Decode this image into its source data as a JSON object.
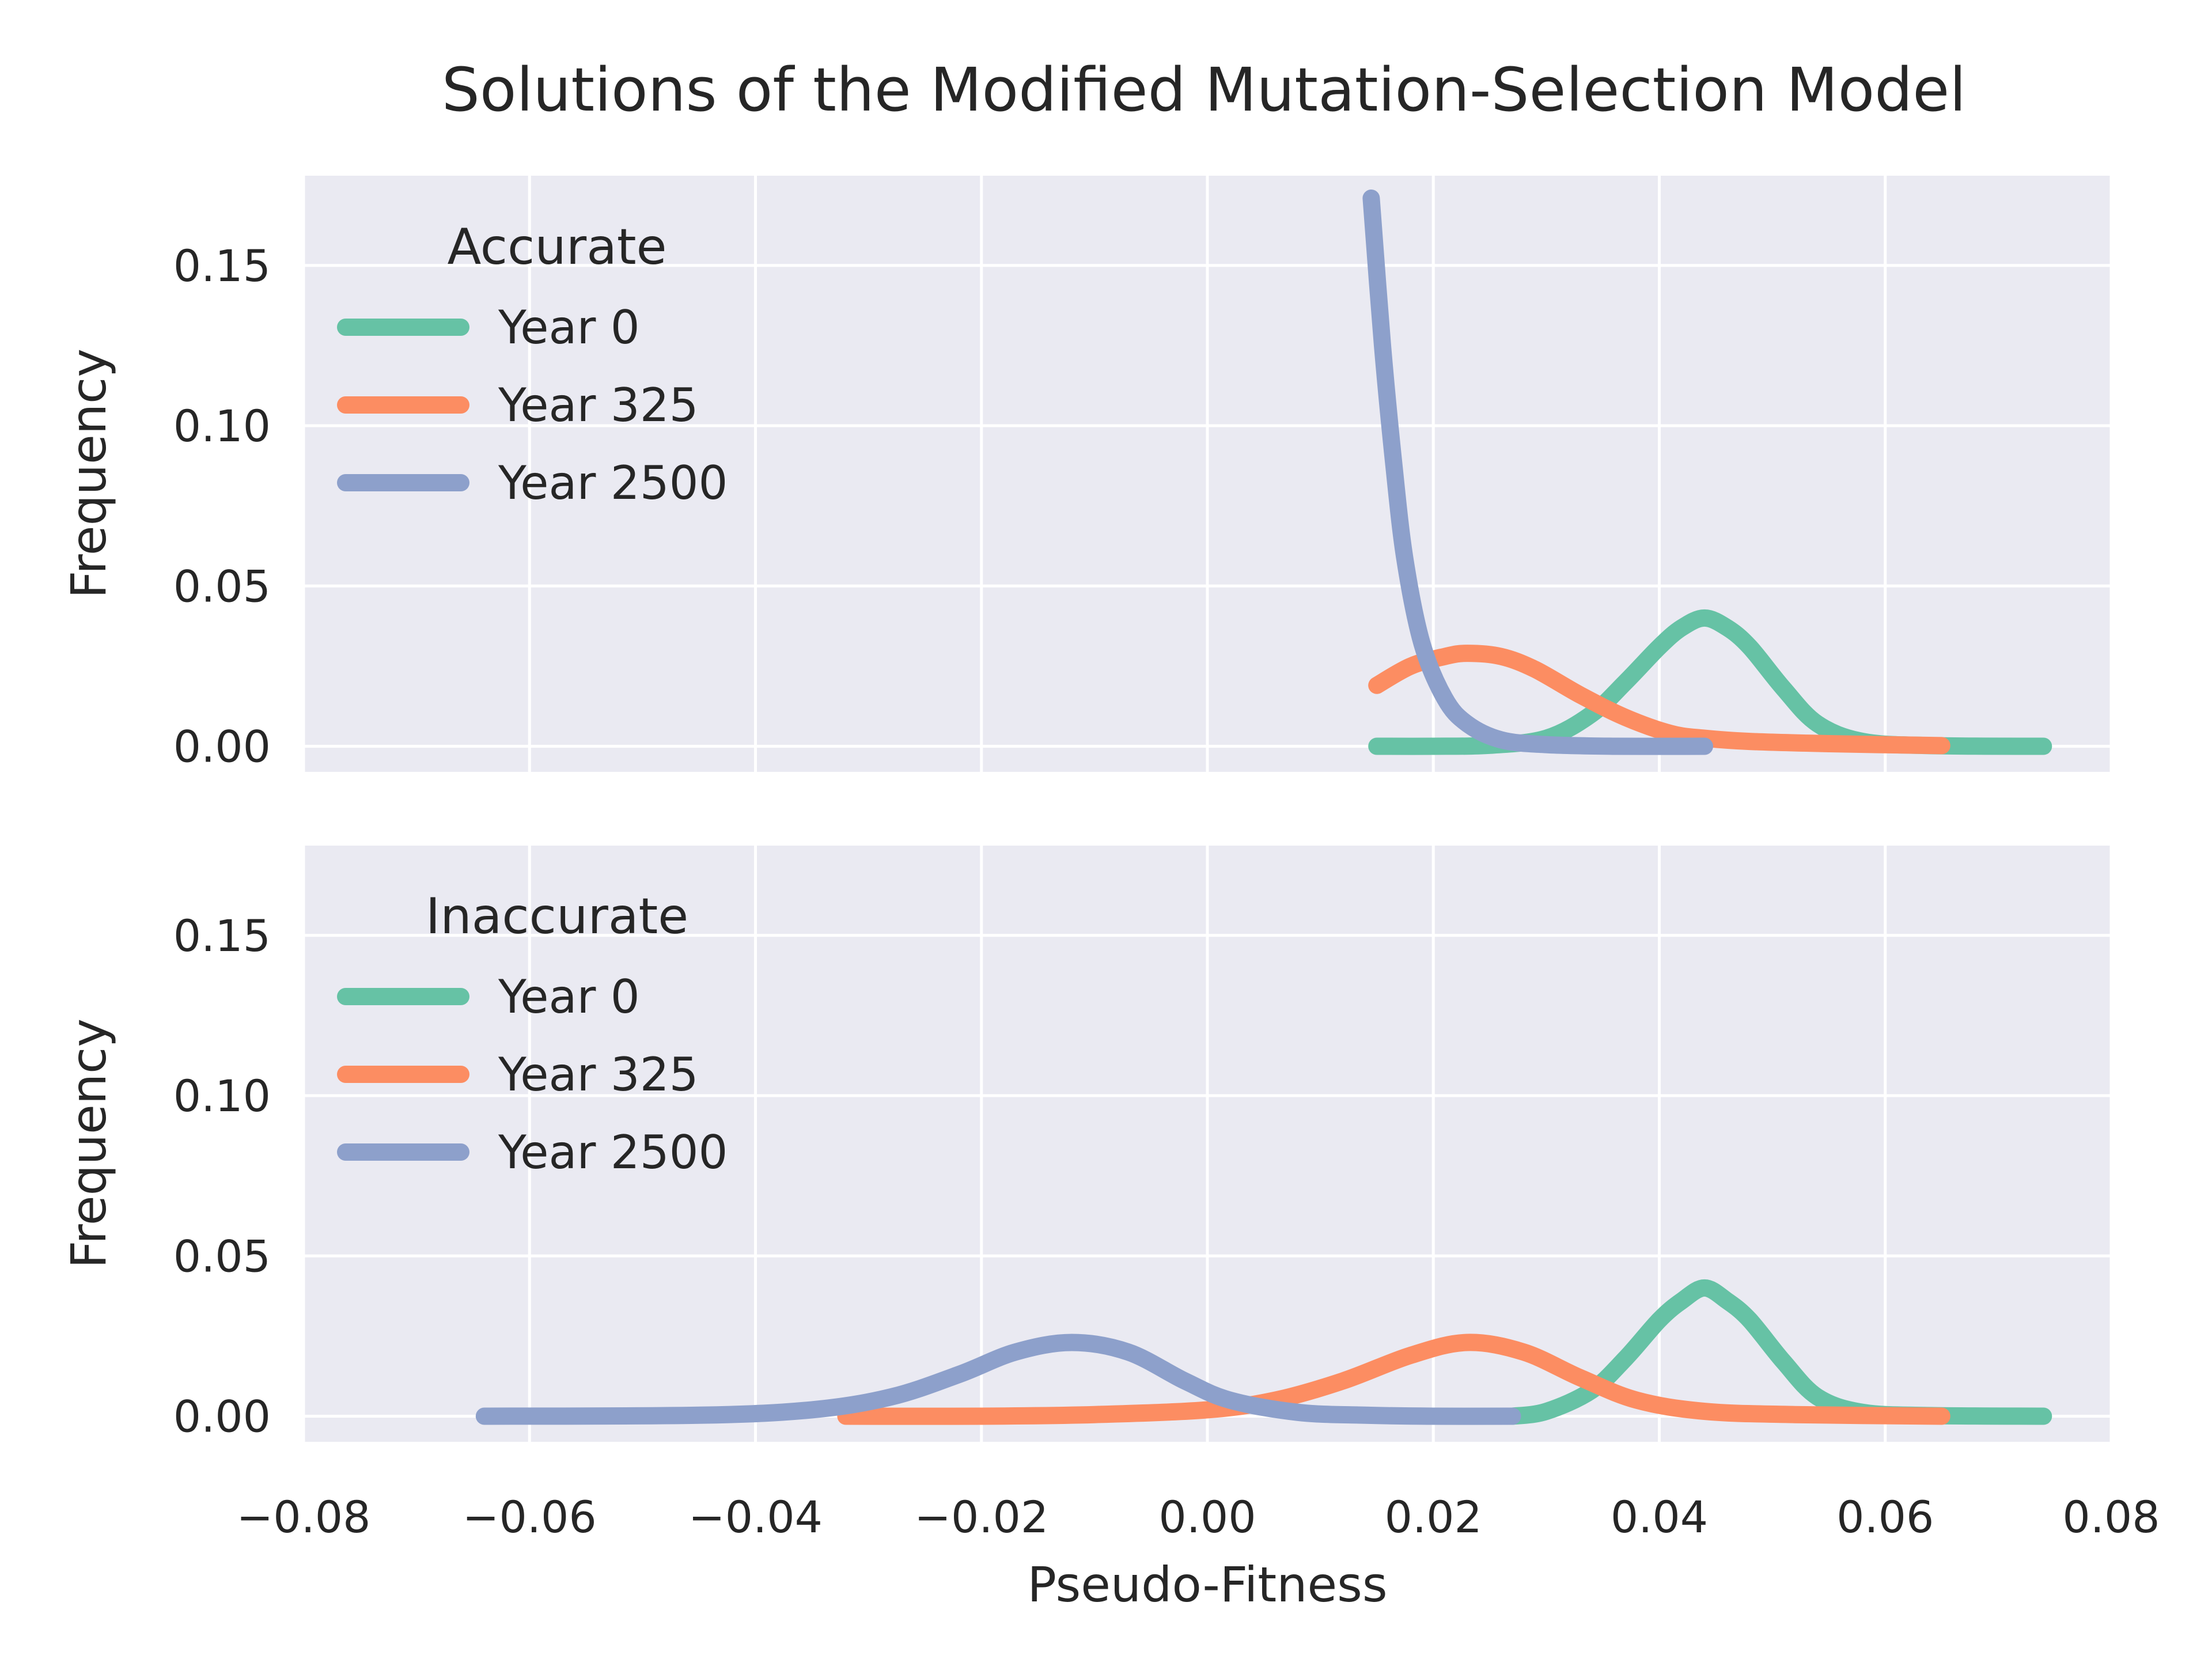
{
  "title": "Solutions of the Modified Mutation-Selection Model",
  "chart_data": {
    "type": "line",
    "title": "Solutions of the Modified Mutation-Selection Model",
    "xlabel": "Pseudo-Fitness",
    "ylabel": "Frequency",
    "xlim": [
      -0.08,
      0.08
    ],
    "ylim": [
      -0.008,
      0.178
    ],
    "x_ticks": [
      "−0.08",
      "−0.06",
      "−0.04",
      "−0.02",
      "0.00",
      "0.02",
      "0.04",
      "0.06",
      "0.08"
    ],
    "y_ticks": [
      "0.00",
      "0.05",
      "0.10",
      "0.15"
    ],
    "grid": true,
    "legend_placement": "upper-left",
    "colors": {
      "Year 0": "#66c2a5",
      "Year 325": "#fc8d62",
      "Year 2500": "#8da0cb",
      "background": "#eaeaf2"
    },
    "panels": [
      {
        "legend_title": "Accurate",
        "series": [
          {
            "name": "Year 0",
            "x": [
              0.015,
              0.02,
              0.025,
              0.03,
              0.034,
              0.037,
              0.04,
              0.042,
              0.044,
              0.046,
              0.048,
              0.051,
              0.054,
              0.058,
              0.064,
              0.074
            ],
            "y": [
              0.0,
              0.0,
              0.0003,
              0.0025,
              0.01,
              0.02,
              0.031,
              0.037,
              0.04,
              0.037,
              0.031,
              0.018,
              0.007,
              0.0015,
              0.0002,
              0.0
            ]
          },
          {
            "name": "Year 325",
            "x": [
              0.015,
              0.018,
              0.021,
              0.023,
              0.026,
              0.029,
              0.033,
              0.037,
              0.041,
              0.044,
              0.048,
              0.055,
              0.065
            ],
            "y": [
              0.019,
              0.025,
              0.028,
              0.029,
              0.028,
              0.024,
              0.016,
              0.009,
              0.004,
              0.0025,
              0.0015,
              0.0008,
              0.0002
            ]
          },
          {
            "name": "Year 2500",
            "x": [
              0.0145,
              0.0155,
              0.0165,
              0.0175,
              0.019,
              0.021,
              0.023,
              0.026,
              0.03,
              0.036,
              0.044
            ],
            "y": [
              0.171,
              0.125,
              0.088,
              0.058,
              0.032,
              0.015,
              0.007,
              0.002,
              0.0005,
              0.0,
              0.0
            ]
          }
        ]
      },
      {
        "legend_title": "Inaccurate",
        "series": [
          {
            "name": "Year 0",
            "x": [
              0.027,
              0.03,
              0.034,
              0.037,
              0.04,
              0.042,
              0.044,
              0.046,
              0.048,
              0.051,
              0.054,
              0.058,
              0.064,
              0.074
            ],
            "y": [
              0.0,
              0.0015,
              0.008,
              0.018,
              0.03,
              0.036,
              0.04,
              0.036,
              0.03,
              0.017,
              0.006,
              0.0012,
              0.0002,
              0.0
            ]
          },
          {
            "name": "Year 325",
            "x": [
              -0.032,
              -0.02,
              -0.01,
              0.0,
              0.006,
              0.012,
              0.018,
              0.023,
              0.028,
              0.033,
              0.038,
              0.044,
              0.052,
              0.065
            ],
            "y": [
              0.0,
              0.0,
              0.0005,
              0.002,
              0.005,
              0.011,
              0.019,
              0.023,
              0.02,
              0.012,
              0.005,
              0.0015,
              0.0005,
              0.0
            ]
          },
          {
            "name": "Year 2500",
            "x": [
              -0.064,
              -0.045,
              -0.035,
              -0.028,
              -0.022,
              -0.017,
              -0.012,
              -0.007,
              -0.002,
              0.002,
              0.008,
              0.014,
              0.02,
              0.027
            ],
            "y": [
              0.0,
              0.0003,
              0.002,
              0.006,
              0.013,
              0.02,
              0.023,
              0.02,
              0.011,
              0.005,
              0.0012,
              0.0003,
              0.0,
              0.0
            ]
          }
        ]
      }
    ]
  }
}
